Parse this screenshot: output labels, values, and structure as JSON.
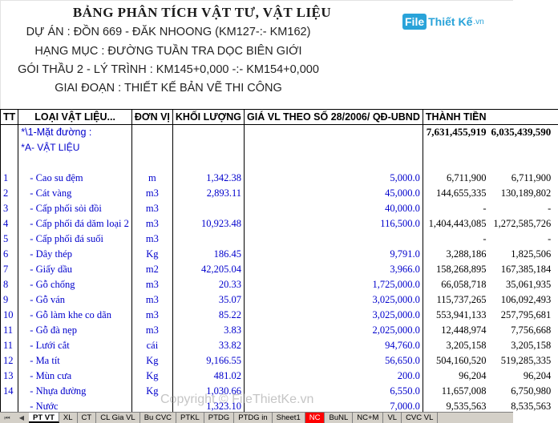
{
  "header": {
    "title": "BẢNG PHÂN TÍCH VẬT TƯ, VẬT LIỆU",
    "lines": [
      "DỰ ÁN : ĐỒN 669 - ĐĂK NHOONG (KM127-:- KM162)",
      "HẠNG MỤC : ĐƯỜNG TUẦN TRA DỌC BIÊN GIỚI",
      "GÓI THẦU 2 - LÝ TRÌNH : KM145+0,000 -:- KM154+0,000",
      "GIAI ĐOẠN : THIẾT KẾ BẢN VẼ THI CÔNG"
    ]
  },
  "logo": {
    "box": "File",
    "text": "Thiết Kế",
    "suffix": ".vn"
  },
  "columns": {
    "tt": "TT",
    "name": "LOẠI VẬT LIỆU...",
    "unit": "ĐƠN VỊ",
    "qty": "KHỐI LƯỢNG",
    "price": "GIÁ VL THEO SỐ 28/2006/ QĐ-UBND",
    "amount": "THÀNH TIỀN"
  },
  "sections": {
    "road": "*\\1-Mặt đường :",
    "road_total_1": "7,631,455,919",
    "road_total_2": "6,035,439,590",
    "materials": "*A- VẬT LIỆU"
  },
  "rows": [
    {
      "tt": "1",
      "name": "- Cao su đệm",
      "unit": "m",
      "qty": "1,342.38",
      "price": "5,000.0",
      "amt1": "6,711,900",
      "amt2": "6,711,900"
    },
    {
      "tt": "2",
      "name": "- Cát vàng",
      "unit": "m3",
      "qty": "2,893.11",
      "price": "45,000.0",
      "amt1": "144,655,335",
      "amt2": "130,189,802"
    },
    {
      "tt": "3",
      "name": "- Cấp phối sỏi đồi",
      "unit": "m3",
      "qty": "",
      "price": "40,000.0",
      "amt1": "-",
      "amt2": "-"
    },
    {
      "tt": "4",
      "name": "- Cấp phối đá dăm loại 2",
      "unit": "m3",
      "qty": "10,923.48",
      "price": "116,500.0",
      "amt1": "1,404,443,085",
      "amt2": "1,272,585,726"
    },
    {
      "tt": "5",
      "name": "- Cấp phối đá suối",
      "unit": "m3",
      "qty": "",
      "price": "",
      "amt1": "-",
      "amt2": "-"
    },
    {
      "tt": "6",
      "name": "- Dây thép",
      "unit": "Kg",
      "qty": "186.45",
      "price": "9,791.0",
      "amt1": "3,288,186",
      "amt2": "1,825,506"
    },
    {
      "tt": "7",
      "name": "- Giấy dầu",
      "unit": "m2",
      "qty": "42,205.04",
      "price": "3,966.0",
      "amt1": "158,268,895",
      "amt2": "167,385,184"
    },
    {
      "tt": "8",
      "name": "- Gỗ chống",
      "unit": "m3",
      "qty": "20.33",
      "price": "1,725,000.0",
      "amt1": "66,058,718",
      "amt2": "35,061,935"
    },
    {
      "tt": "9",
      "name": "- Gỗ ván",
      "unit": "m3",
      "qty": "35.07",
      "price": "3,025,000.0",
      "amt1": "115,737,265",
      "amt2": "106,092,493"
    },
    {
      "tt": "10",
      "name": "- Gỗ làm khe co dãn",
      "unit": "m3",
      "qty": "85.22",
      "price": "3,025,000.0",
      "amt1": "553,941,133",
      "amt2": "257,795,681"
    },
    {
      "tt": "11",
      "name": "- Gỗ đà nẹp",
      "unit": "m3",
      "qty": "3.83",
      "price": "2,025,000.0",
      "amt1": "12,448,974",
      "amt2": "7,756,668"
    },
    {
      "tt": "11",
      "name": "- Lưới cắt",
      "unit": "cái",
      "qty": "33.82",
      "price": "94,760.0",
      "amt1": "3,205,158",
      "amt2": "3,205,158"
    },
    {
      "tt": "12",
      "name": "- Ma tít",
      "unit": "Kg",
      "qty": "9,166.55",
      "price": "56,650.0",
      "amt1": "504,160,520",
      "amt2": "519,285,335"
    },
    {
      "tt": "13",
      "name": "- Mùn cưa",
      "unit": "Kg",
      "qty": "481.02",
      "price": "200.0",
      "amt1": "96,204",
      "amt2": "96,204"
    },
    {
      "tt": "14",
      "name": "- Nhựa đường",
      "unit": "Kg",
      "qty": "1,030.66",
      "price": "6,550.0",
      "amt1": "11,657,008",
      "amt2": "6,750,980"
    },
    {
      "tt": "",
      "name": "- Nước",
      "unit": "",
      "qty": "1,323.10",
      "price": "7,000.0",
      "amt1": "9,535,563",
      "amt2": "8,535,563"
    }
  ],
  "watermark": "Copyright © FileThietKe.vn",
  "tabs": [
    "PT VT",
    "XL",
    "CT",
    "CL Gia VL",
    "Bu CVC",
    "PTKL",
    "PTDG",
    "PTDG in",
    "Sheet1",
    "NC",
    "BuNL",
    "NC+M",
    "VL",
    "CVC VL"
  ],
  "active_tab": "PT VT",
  "red_tab": "NC",
  "colors": {
    "link_blue": "#0000cc",
    "logo_blue": "#29a3d9",
    "tab_red": "#ff0000"
  }
}
